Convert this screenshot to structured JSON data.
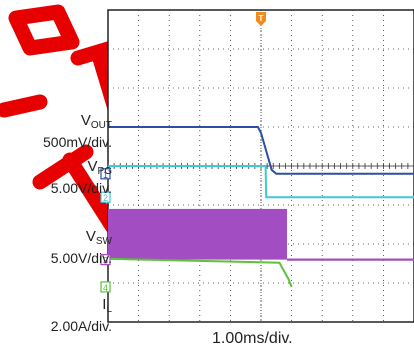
{
  "chart_data": {
    "type": "line",
    "title": "",
    "xlabel": "1.00ms/div.",
    "divisions": {
      "x": 10,
      "y": 8
    },
    "grid": true,
    "trigger_marker": "T",
    "series": [
      {
        "symbol": "V",
        "sub": "OUT",
        "scale": "500mV/div.",
        "channel": "1",
        "color": "#2c4fa3",
        "points": [
          [
            0,
            1.2
          ],
          [
            4.9,
            1.2
          ],
          [
            5.0,
            1.05
          ],
          [
            5.35,
            0.1
          ],
          [
            5.5,
            0
          ],
          [
            10,
            0
          ]
        ],
        "offset_div": 3.8
      },
      {
        "symbol": "V",
        "sub": "PG",
        "scale": "5.00V/div.",
        "channel": "2",
        "color": "#3ec9d6",
        "points": [
          [
            0,
            0.8
          ],
          [
            5.15,
            0.8
          ],
          [
            5.17,
            0
          ],
          [
            10,
            0
          ]
        ],
        "offset_div": 3.2
      },
      {
        "symbol": "V",
        "sub": "SW",
        "scale": "5.00V/div.",
        "channel": "3",
        "color": "#a24ec2",
        "points": [
          [
            0,
            0
          ],
          [
            5.85,
            0
          ],
          [
            5.85,
            1.3
          ],
          [
            0,
            1.3
          ]
        ],
        "fill": "switching",
        "offset_div": 1.6
      },
      {
        "symbol": "I",
        "sub": "L",
        "scale": "2.00A/div.",
        "channel": "4",
        "color": "#5dc23a",
        "points": [
          [
            0,
            0.72
          ],
          [
            5.6,
            0.62
          ],
          [
            5.9,
            0.2
          ],
          [
            6.0,
            0
          ]
        ],
        "offset_div": 0.9
      }
    ]
  }
}
